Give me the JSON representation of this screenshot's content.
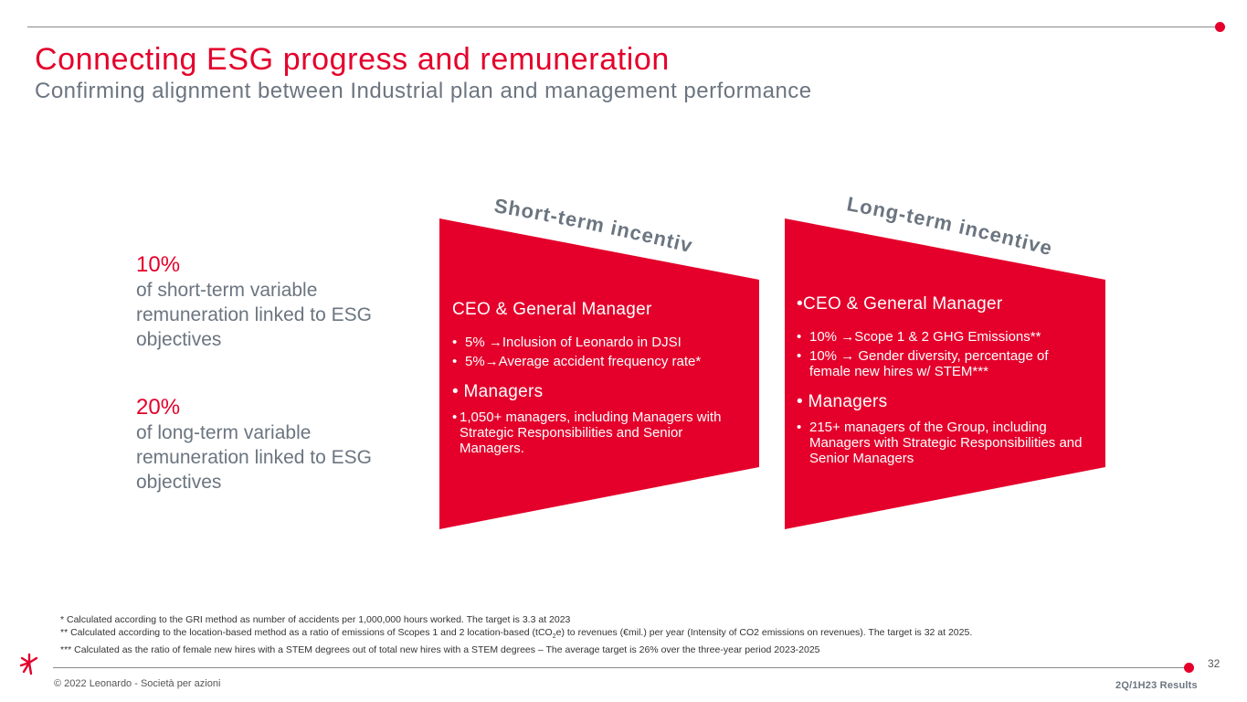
{
  "slide": {
    "title": "Connecting ESG progress and remuneration",
    "subtitle": "Confirming alignment between Industrial plan and management performance"
  },
  "stats": [
    {
      "percent": "10%",
      "description": "of short-term variable remuneration linked to ESG objectives"
    },
    {
      "percent": "20%",
      "description": "of long-term variable remuneration linked to ESG objectives"
    }
  ],
  "short_term": {
    "label": "Short-term incentive",
    "ceo_heading": "CEO & General Manager",
    "ceo_items": [
      "5% →Inclusion of Leonardo in DJSI",
      "5%→Average accident frequency rate*"
    ],
    "managers_heading": "Managers",
    "managers_text": "1,050+ managers, including Managers with Strategic Responsibilities and Senior Managers."
  },
  "long_term": {
    "label": "Long-term incentive",
    "ceo_heading": "CEO & General Manager",
    "ceo_items": [
      "10% →Scope 1 & 2 GHG Emissions**",
      "10% → Gender diversity, percentage of female new hires w/ STEM***"
    ],
    "managers_heading": "Managers",
    "managers_text": "215+ managers of the Group, including Managers with Strategic Responsibilities and Senior Managers"
  },
  "footnotes": {
    "note1": "* Calculated according to the GRI method as number of accidents per 1,000,000 hours worked. The target is 3.3 at 2023",
    "note2_a": "** Calculated according to the location-based method as a ratio of emissions of Scopes 1 and 2 location-based (tCO",
    "note2_sub": "2",
    "note2_b": "e) to revenues (€mil.) per year (Intensity of CO2 emissions on revenues). The target is 32 at 2025.",
    "note3": "*** Calculated as the ratio of female new hires with a STEM degrees out of total new hires with a STEM degrees – The average target is 26% over the three-year period 2023-2025"
  },
  "footer": {
    "copyright": "© 2022 Leonardo - Società per azioni",
    "page_number": "32",
    "results_tag": "2Q/1H23 Results"
  },
  "colors": {
    "accent": "#e4002b",
    "grey_text": "#6b7580"
  }
}
